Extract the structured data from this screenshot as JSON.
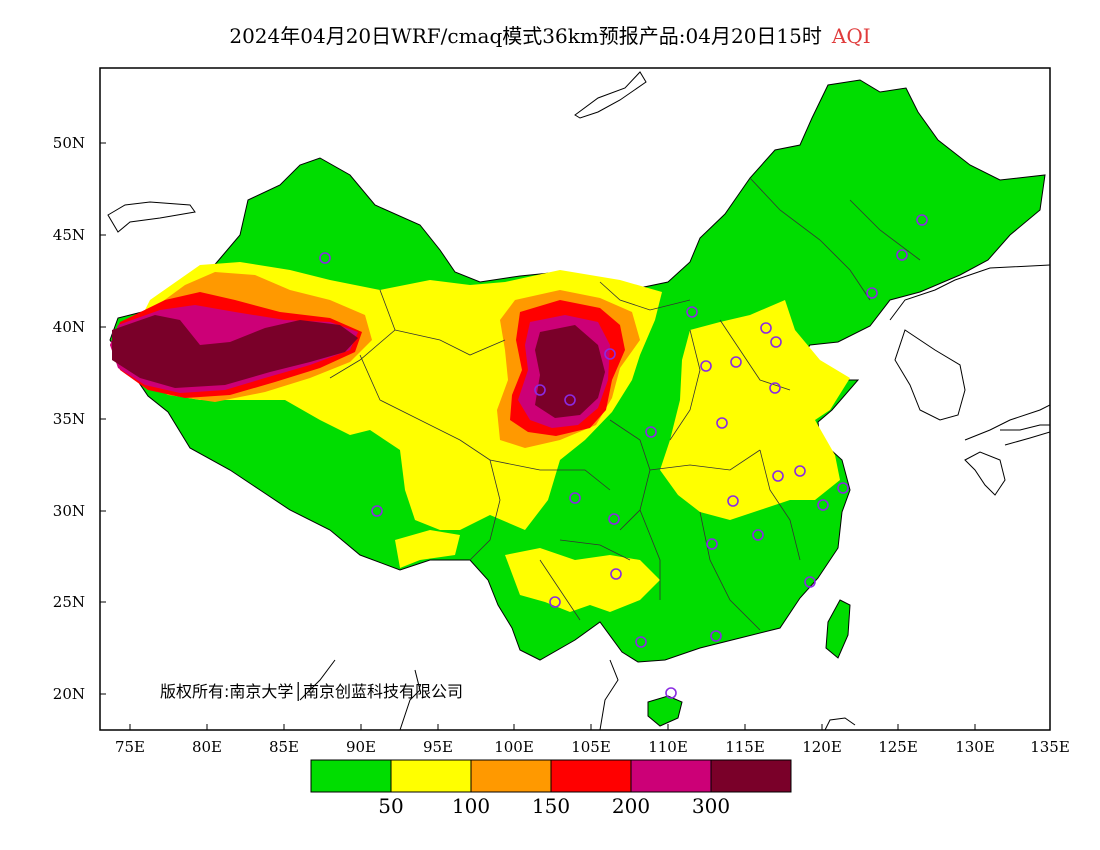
{
  "title": {
    "main": "2024年04月20日WRF/cmaq模式36km预报产品:04月20日15时",
    "variable": "AQI",
    "variable_color": "#e03c3c"
  },
  "copyright": "版权所有:南京大学│南京创蓝科技有限公司",
  "axes": {
    "lat_labels": [
      "50N",
      "45N",
      "40N",
      "35N",
      "30N",
      "25N",
      "20N"
    ],
    "lon_labels": [
      "75E",
      "80E",
      "85E",
      "90E",
      "95E",
      "100E",
      "105E",
      "110E",
      "115E",
      "120E",
      "125E",
      "130E",
      "135E"
    ]
  },
  "legend": {
    "colors": [
      "#00dd00",
      "#ffff00",
      "#ff9900",
      "#ff0000",
      "#cc0077",
      "#7a0029"
    ],
    "labels": [
      "50",
      "100",
      "150",
      "200",
      "300"
    ]
  },
  "palette": {
    "land_default": "#00dd00",
    "ocean": "#ffffff",
    "station_marker": "#8a2be2"
  }
}
